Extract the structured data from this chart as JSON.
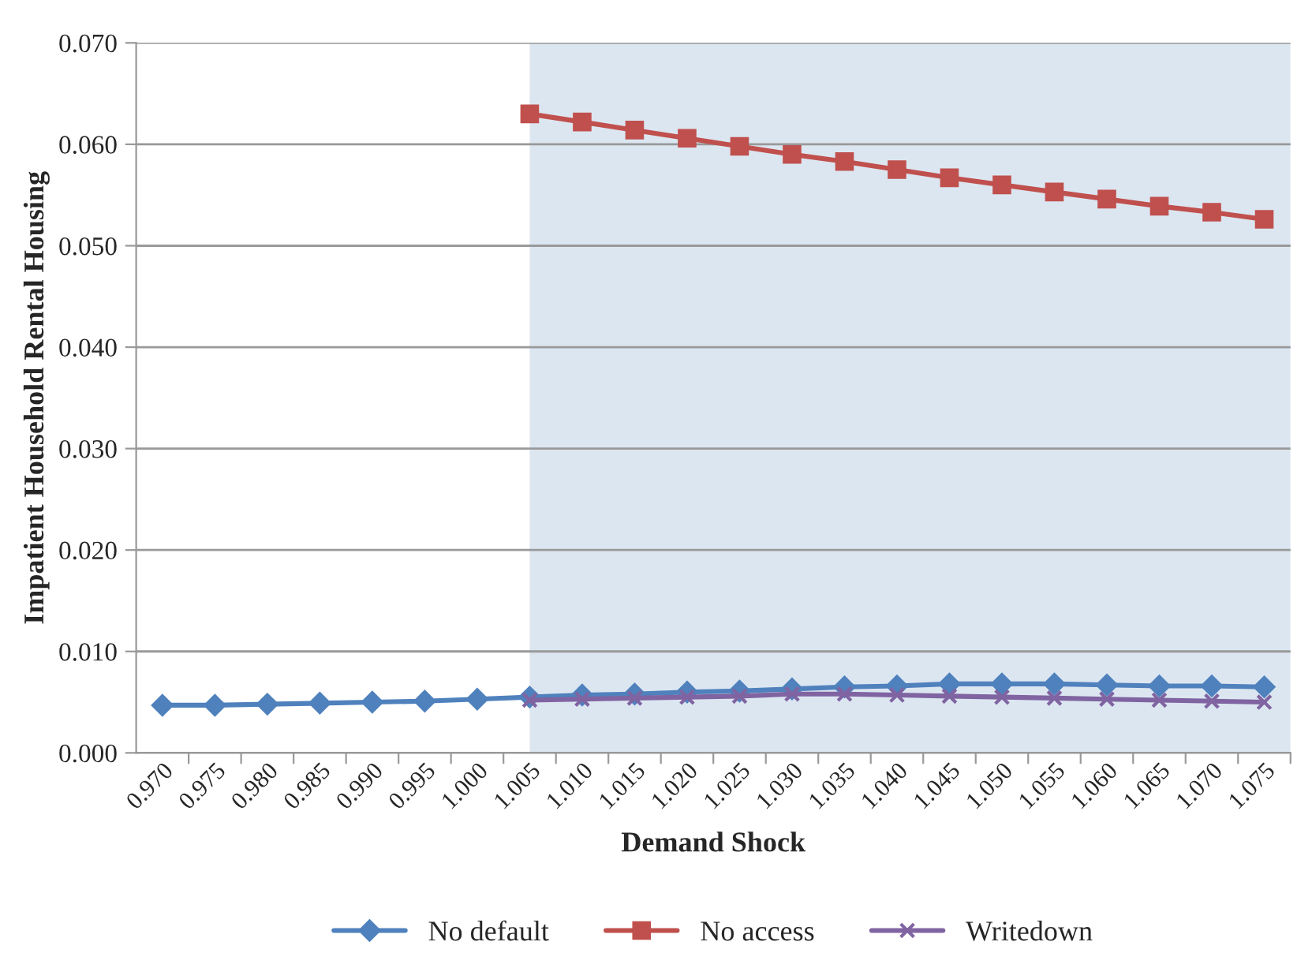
{
  "chart_data": {
    "type": "line",
    "xlabel": "Demand Shock",
    "ylabel": "Impatient Household Rental Housing",
    "categories": [
      "0.970",
      "0.975",
      "0.980",
      "0.985",
      "0.990",
      "0.995",
      "1.000",
      "1.005",
      "1.010",
      "1.015",
      "1.020",
      "1.025",
      "1.030",
      "1.035",
      "1.040",
      "1.045",
      "1.050",
      "1.055",
      "1.060",
      "1.065",
      "1.070",
      "1.075"
    ],
    "series": [
      {
        "name": "No default",
        "color": "#4f81bd",
        "marker": "diamond",
        "values": [
          0.0047,
          0.0047,
          0.0048,
          0.0049,
          0.005,
          0.0051,
          0.0053,
          0.0055,
          0.0057,
          0.0058,
          0.006,
          0.0061,
          0.0063,
          0.0065,
          0.0066,
          0.0068,
          0.0068,
          0.0068,
          0.0067,
          0.0066,
          0.0066,
          0.0065
        ]
      },
      {
        "name": "No access",
        "color": "#c0504d",
        "marker": "square",
        "values": [
          null,
          null,
          null,
          null,
          null,
          null,
          null,
          0.063,
          0.0622,
          0.0614,
          0.0606,
          0.0598,
          0.059,
          0.0583,
          0.0575,
          0.0567,
          0.056,
          0.0553,
          0.0546,
          0.0539,
          0.0533,
          0.0526
        ]
      },
      {
        "name": "Writedown",
        "color": "#8064a2",
        "marker": "cross",
        "values": [
          null,
          null,
          null,
          null,
          null,
          null,
          null,
          0.0052,
          0.0053,
          0.0054,
          0.0055,
          0.0056,
          0.0058,
          0.0058,
          0.0057,
          0.0056,
          0.0055,
          0.0054,
          0.0053,
          0.0052,
          0.0051,
          0.005
        ]
      }
    ],
    "ylim": [
      0,
      0.07
    ],
    "yticks": [
      {
        "value": 0,
        "label": "0.000"
      },
      {
        "value": 0.01,
        "label": "0.010"
      },
      {
        "value": 0.02,
        "label": "0.020"
      },
      {
        "value": 0.03,
        "label": "0.030"
      },
      {
        "value": 0.04,
        "label": "0.040"
      },
      {
        "value": 0.05,
        "label": "0.050"
      },
      {
        "value": 0.06,
        "label": "0.060"
      },
      {
        "value": 0.07,
        "label": "0.070"
      }
    ],
    "bands": [
      {
        "axis": "x",
        "from": "1.005",
        "to": "1.075",
        "color": "#dce6f1"
      }
    ],
    "grid": "y",
    "legend": "bottom",
    "line_style": "solid"
  }
}
